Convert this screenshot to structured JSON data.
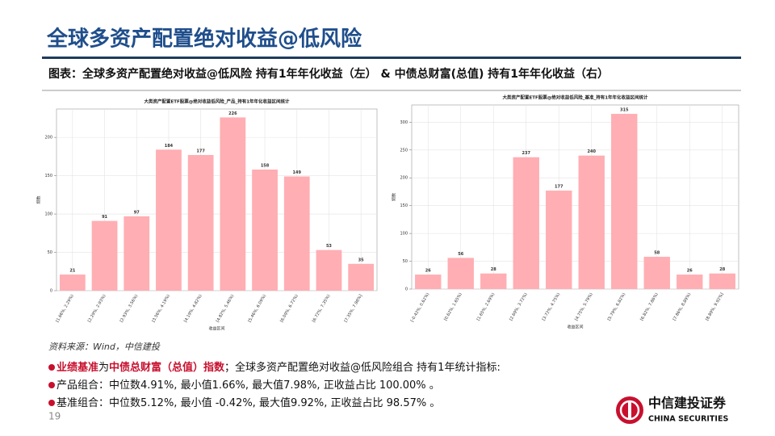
{
  "header": {
    "title": "全球多资产配置绝对收益@低风险"
  },
  "caption": "图表：全球多资产配置绝对收益@低风险 持有1年年化收益（左） & 中债总财富(总值) 持有1年年化收益（右）",
  "chart_data": [
    {
      "type": "bar",
      "title": "大类资产配置ETF股票@绝对收益低风险_产品_持有1年年化收益区间统计",
      "x_label": "收益区间",
      "y_label": "频数",
      "categories": [
        "[1.66%, 2.29%)",
        "[2.29%, 2.93%)",
        "[2.93%, 3.56%)",
        "[3.56%, 4.19%)",
        "[4.19%, 4.82%)",
        "[4.82%, 5.46%)",
        "[5.46%, 6.09%)",
        "[6.09%, 6.72%)",
        "[6.72%, 7.35%)",
        "[7.35%, 7.98%]"
      ],
      "values": [
        21,
        91,
        97,
        184,
        177,
        226,
        158,
        149,
        53,
        35
      ],
      "color": "#ffaeb3",
      "ylim": [
        0,
        237
      ],
      "yticks": [
        0,
        50,
        100,
        150,
        200
      ],
      "grid": true
    },
    {
      "type": "bar",
      "title": "大类资产配置ETF股票@绝对收益低风险_基准_持有1年年化收益区间统计",
      "x_label": "收益区间",
      "y_label": "频数",
      "categories": [
        "[-0.42%, 0.62%)",
        "[0.62%, 1.65%)",
        "[1.65%, 2.69%)",
        "[2.69%, 3.72%)",
        "[3.72%, 4.75%)",
        "[4.75%, 5.79%)",
        "[5.79%, 6.82%)",
        "[6.82%, 7.86%)",
        "[7.86%, 8.89%)",
        "[8.89%, 9.92%]"
      ],
      "values": [
        26,
        56,
        28,
        237,
        177,
        240,
        315,
        58,
        26,
        28
      ],
      "color": "#ffaeb3",
      "ylim": [
        0,
        331
      ],
      "yticks": [
        0,
        50,
        100,
        150,
        200,
        250,
        300
      ],
      "grid": true
    }
  ],
  "source": "资料来源：Wind，中信建投",
  "notes": [
    {
      "segments": [
        {
          "text": "业绩基准",
          "highlight": true
        },
        {
          "text": "为",
          "highlight": false
        },
        {
          "text": "中债总财富（总值）指数",
          "highlight": true
        },
        {
          "text": "；全球多资产配置绝对收益@低风险组合 持有1年统计指标:",
          "highlight": false
        }
      ]
    },
    {
      "segments": [
        {
          "text": "产品组合：中位数4.91%, 最小值1.66%, 最大值7.98%, 正收益占比 100.00% 。",
          "highlight": false
        }
      ]
    },
    {
      "segments": [
        {
          "text": "基准组合：中位数5.12%, 最小值 -0.42%, 最大值9.92%, 正收益占比 98.57% 。",
          "highlight": false
        }
      ]
    }
  ],
  "page_number": "19",
  "logo": {
    "name": "中信建投证券",
    "english": "CHINA SECURITIES"
  }
}
